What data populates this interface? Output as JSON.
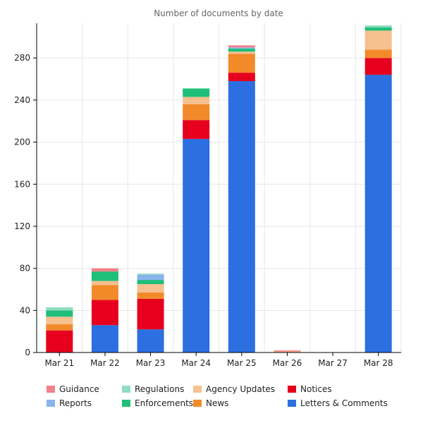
{
  "chart_data": {
    "type": "bar",
    "stacked": true,
    "title": "Number of documents by date",
    "categories": [
      "Mar 21",
      "Mar 22",
      "Mar 23",
      "Mar 24",
      "Mar 25",
      "Mar 26",
      "Mar 27",
      "Mar 28"
    ],
    "yticks": [
      0,
      40,
      80,
      120,
      160,
      200,
      240,
      280
    ],
    "ylim": [
      0,
      313
    ],
    "grid": true,
    "legend_position": "bottom",
    "series": [
      {
        "name": "Letters & Comments",
        "color": "#2b6fe0",
        "values": [
          0,
          26,
          22,
          203,
          258,
          0,
          0,
          264
        ]
      },
      {
        "name": "Notices",
        "color": "#e6001e",
        "values": [
          21,
          24,
          29,
          18,
          8,
          0,
          0,
          16
        ]
      },
      {
        "name": "News",
        "color": "#f28a2a",
        "values": [
          6,
          14,
          6,
          15,
          18,
          0,
          0,
          8
        ]
      },
      {
        "name": "Agency Updates",
        "color": "#f7c08f",
        "values": [
          7,
          4,
          8,
          7,
          2,
          1,
          0,
          18
        ]
      },
      {
        "name": "Enforcements",
        "color": "#1fbf7a",
        "values": [
          6,
          9,
          4,
          8,
          3,
          0,
          0,
          3
        ]
      },
      {
        "name": "Reports",
        "color": "#8ab3ee",
        "values": [
          0,
          0,
          5,
          0,
          1,
          0,
          0,
          0
        ]
      },
      {
        "name": "Regulations",
        "color": "#8fdcc0",
        "values": [
          3,
          0,
          1,
          0,
          0,
          0,
          0,
          2
        ]
      },
      {
        "name": "Guidance",
        "color": "#f2808a",
        "values": [
          0,
          3,
          0,
          0,
          2,
          1,
          0,
          0
        ]
      }
    ],
    "legend_order": [
      "Guidance",
      "Reports",
      "Regulations",
      "Enforcements",
      "Agency Updates",
      "News",
      "Notices",
      "Letters & Comments"
    ]
  }
}
